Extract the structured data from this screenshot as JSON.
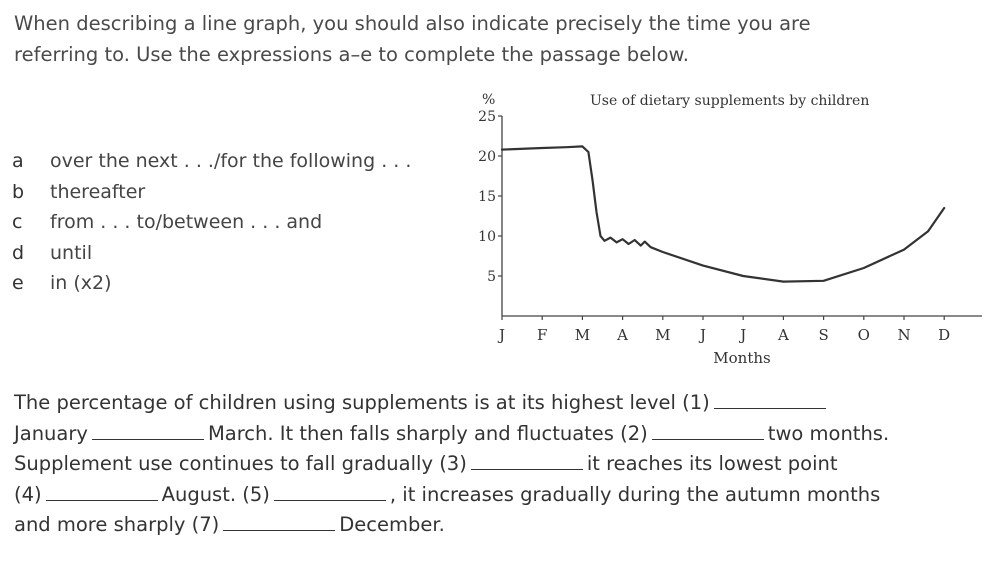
{
  "instructions": {
    "line1": "When describing a line graph, you should also indicate precisely the time you are",
    "line2": "referring to. Use the expressions a–e to complete the passage below."
  },
  "options": [
    {
      "key": "a",
      "text": "over the next . . ./for the following . . ."
    },
    {
      "key": "b",
      "text": "thereafter"
    },
    {
      "key": "c",
      "text": "from . . . to/between . . . and"
    },
    {
      "key": "d",
      "text": "until"
    },
    {
      "key": "e",
      "text": "in (x2)"
    }
  ],
  "chart_data": {
    "type": "line",
    "title": "Use of dietary supplements by children",
    "ylabel": "%",
    "xlabel": "Months",
    "x": [
      "J",
      "F",
      "M",
      "A",
      "M",
      "J",
      "J",
      "A",
      "S",
      "O",
      "N",
      "D"
    ],
    "yticks": [
      5,
      10,
      15,
      20,
      25
    ],
    "ylim": [
      0,
      25
    ],
    "xlim": [
      0,
      11.5
    ],
    "series": [
      {
        "points": [
          [
            0,
            20.8
          ],
          [
            1,
            21.0
          ],
          [
            1.6,
            21.1
          ],
          [
            2,
            21.2
          ],
          [
            2.15,
            20.5
          ],
          [
            2.25,
            17
          ],
          [
            2.35,
            13
          ],
          [
            2.45,
            10
          ],
          [
            2.55,
            9.4
          ],
          [
            2.7,
            9.8
          ],
          [
            2.85,
            9.2
          ],
          [
            3.0,
            9.6
          ],
          [
            3.15,
            9.0
          ],
          [
            3.3,
            9.5
          ],
          [
            3.45,
            8.8
          ],
          [
            3.55,
            9.3
          ],
          [
            3.7,
            8.6
          ],
          [
            4,
            8.0
          ],
          [
            5,
            6.3
          ],
          [
            6,
            5.0
          ],
          [
            7,
            4.3
          ],
          [
            8,
            4.4
          ],
          [
            9,
            6.0
          ],
          [
            10,
            8.3
          ],
          [
            10.6,
            10.6
          ],
          [
            11,
            13.5
          ]
        ]
      }
    ]
  },
  "passage": {
    "l1a": "The percentage of children using supplements is at its highest level (1)",
    "l2a": "January",
    "l2b": "March. It then falls sharply and fluctuates (2)",
    "l2c": "two months.",
    "l3a": "Supplement use continues to fall gradually (3)",
    "l3b": "it reaches its lowest point",
    "l4a": "(4)",
    "l4b": "August. (5)",
    "l4c": ", it increases gradually during the autumn months",
    "l5a": "and more sharply (7)",
    "l5b": "December."
  }
}
